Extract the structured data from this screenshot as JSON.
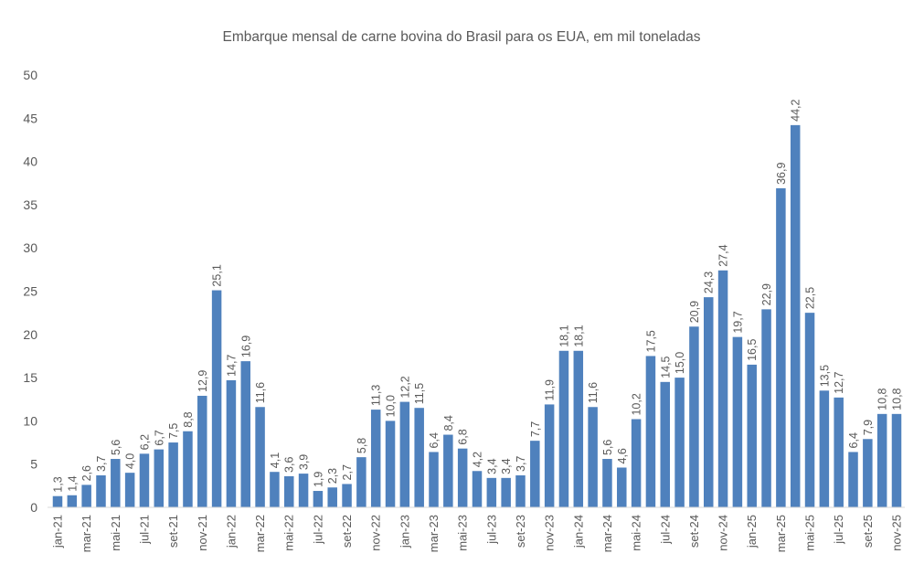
{
  "chart_data": {
    "type": "bar",
    "title": "Embarque mensal de carne bovina do Brasil para os EUA, em mil toneladas",
    "xlabel": "",
    "ylabel": "",
    "ylim": [
      0,
      50
    ],
    "y_ticks": [
      0,
      5,
      10,
      15,
      20,
      25,
      30,
      35,
      40,
      45,
      50
    ],
    "grid": false,
    "legend": "none",
    "bar_color": "#4f81bd",
    "x_tick_labels": [
      "jan-21",
      "mar-21",
      "mai-21",
      "jul-21",
      "set-21",
      "nov-21",
      "jan-22",
      "mar-22",
      "mai-22",
      "jul-22",
      "set-22",
      "nov-22",
      "jan-23",
      "mar-23",
      "mai-23",
      "jul-23",
      "set-23",
      "nov-23",
      "jan-24",
      "mar-24",
      "mai-24",
      "jul-24",
      "set-24",
      "nov-24",
      "jan-25",
      "mar-25",
      "mai-25",
      "jul-25",
      "set-25",
      "nov-25"
    ],
    "values": [
      1.3,
      1.4,
      2.6,
      3.7,
      5.6,
      4.0,
      6.2,
      6.7,
      7.5,
      8.8,
      12.9,
      25.1,
      14.7,
      16.9,
      11.6,
      4.1,
      3.6,
      3.9,
      1.9,
      2.3,
      2.7,
      5.8,
      11.3,
      10.0,
      12.2,
      11.5,
      6.4,
      8.4,
      6.8,
      4.2,
      3.4,
      3.4,
      3.7,
      7.7,
      11.9,
      18.1,
      18.1,
      11.6,
      5.6,
      4.6,
      10.2,
      17.5,
      14.5,
      15.0,
      20.9,
      24.3,
      27.4,
      19.7,
      16.5,
      22.9,
      36.9,
      44.2,
      22.5,
      13.5,
      12.7,
      6.4,
      7.9,
      10.8,
      10.8
    ],
    "data_labels": [
      "1,3",
      "1,4",
      "2,6",
      "3,7",
      "5,6",
      "4,0",
      "6,2",
      "6,7",
      "7,5",
      "8,8",
      "12,9",
      "25,1",
      "14,7",
      "16,9",
      "11,6",
      "4,1",
      "3,6",
      "3,9",
      "1,9",
      "2,3",
      "2,7",
      "5,8",
      "11,3",
      "10,0",
      "12,2",
      "11,5",
      "6,4",
      "8,4",
      "6,8",
      "4,2",
      "3,4",
      "3,4",
      "3,7",
      "7,7",
      "11,9",
      "18,1",
      "18,1",
      "11,6",
      "5,6",
      "4,6",
      "10,2",
      "17,5",
      "14,5",
      "15,0",
      "20,9",
      "24,3",
      "27,4",
      "19,7",
      "16,5",
      "22,9",
      "36,9",
      "44,2",
      "22,5",
      "13,5",
      "12,7",
      "6,4",
      "7,9",
      "10,8",
      "10,8"
    ]
  }
}
